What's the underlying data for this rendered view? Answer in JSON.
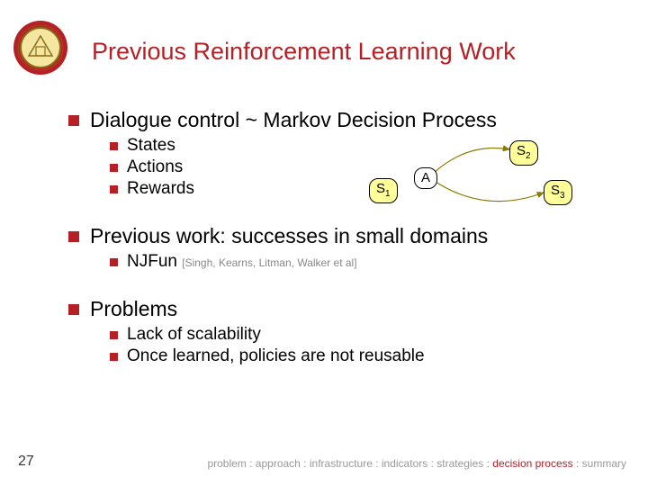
{
  "title": "Previous Reinforcement Learning Work",
  "slide_number": "27",
  "logo": {
    "outer_color": "#b62025",
    "seal_bg": "#f5e6a0",
    "seal_border": "#8a6d1a"
  },
  "bullets": [
    {
      "text": "Dialogue control ~ Markov Decision Process",
      "children": [
        {
          "text": "States"
        },
        {
          "text": "Actions"
        },
        {
          "text": "Rewards"
        }
      ]
    },
    {
      "text": "Previous work: successes in small domains",
      "children": [
        {
          "text": "NJFun",
          "citation": "[Singh, Kearns, Litman, Walker et al]"
        }
      ]
    },
    {
      "text": "Problems",
      "children": [
        {
          "text": "Lack of scalability"
        },
        {
          "text": "Once learned, policies are not reusable"
        }
      ]
    }
  ],
  "diagram": {
    "nodes": {
      "s1": {
        "label": "S",
        "sub": "1",
        "bg": "#ffff99"
      },
      "a": {
        "label": "A",
        "sub": "",
        "bg": "#ffffff"
      },
      "s2": {
        "label": "S",
        "sub": "2",
        "bg": "#ffff99"
      },
      "s3": {
        "label": "S",
        "sub": "3",
        "bg": "#ffff99"
      }
    },
    "edge_color": "#8a7a00",
    "edge_width": 1.2
  },
  "breadcrumb": {
    "items": [
      "problem",
      "approach",
      "infrastructure",
      "indicators",
      "strategies",
      "decision process",
      "summary"
    ],
    "active_index": 5,
    "separator": " : "
  },
  "colors": {
    "accent": "#b62025",
    "text": "#000000",
    "muted": "#999999",
    "citation": "#888888"
  }
}
